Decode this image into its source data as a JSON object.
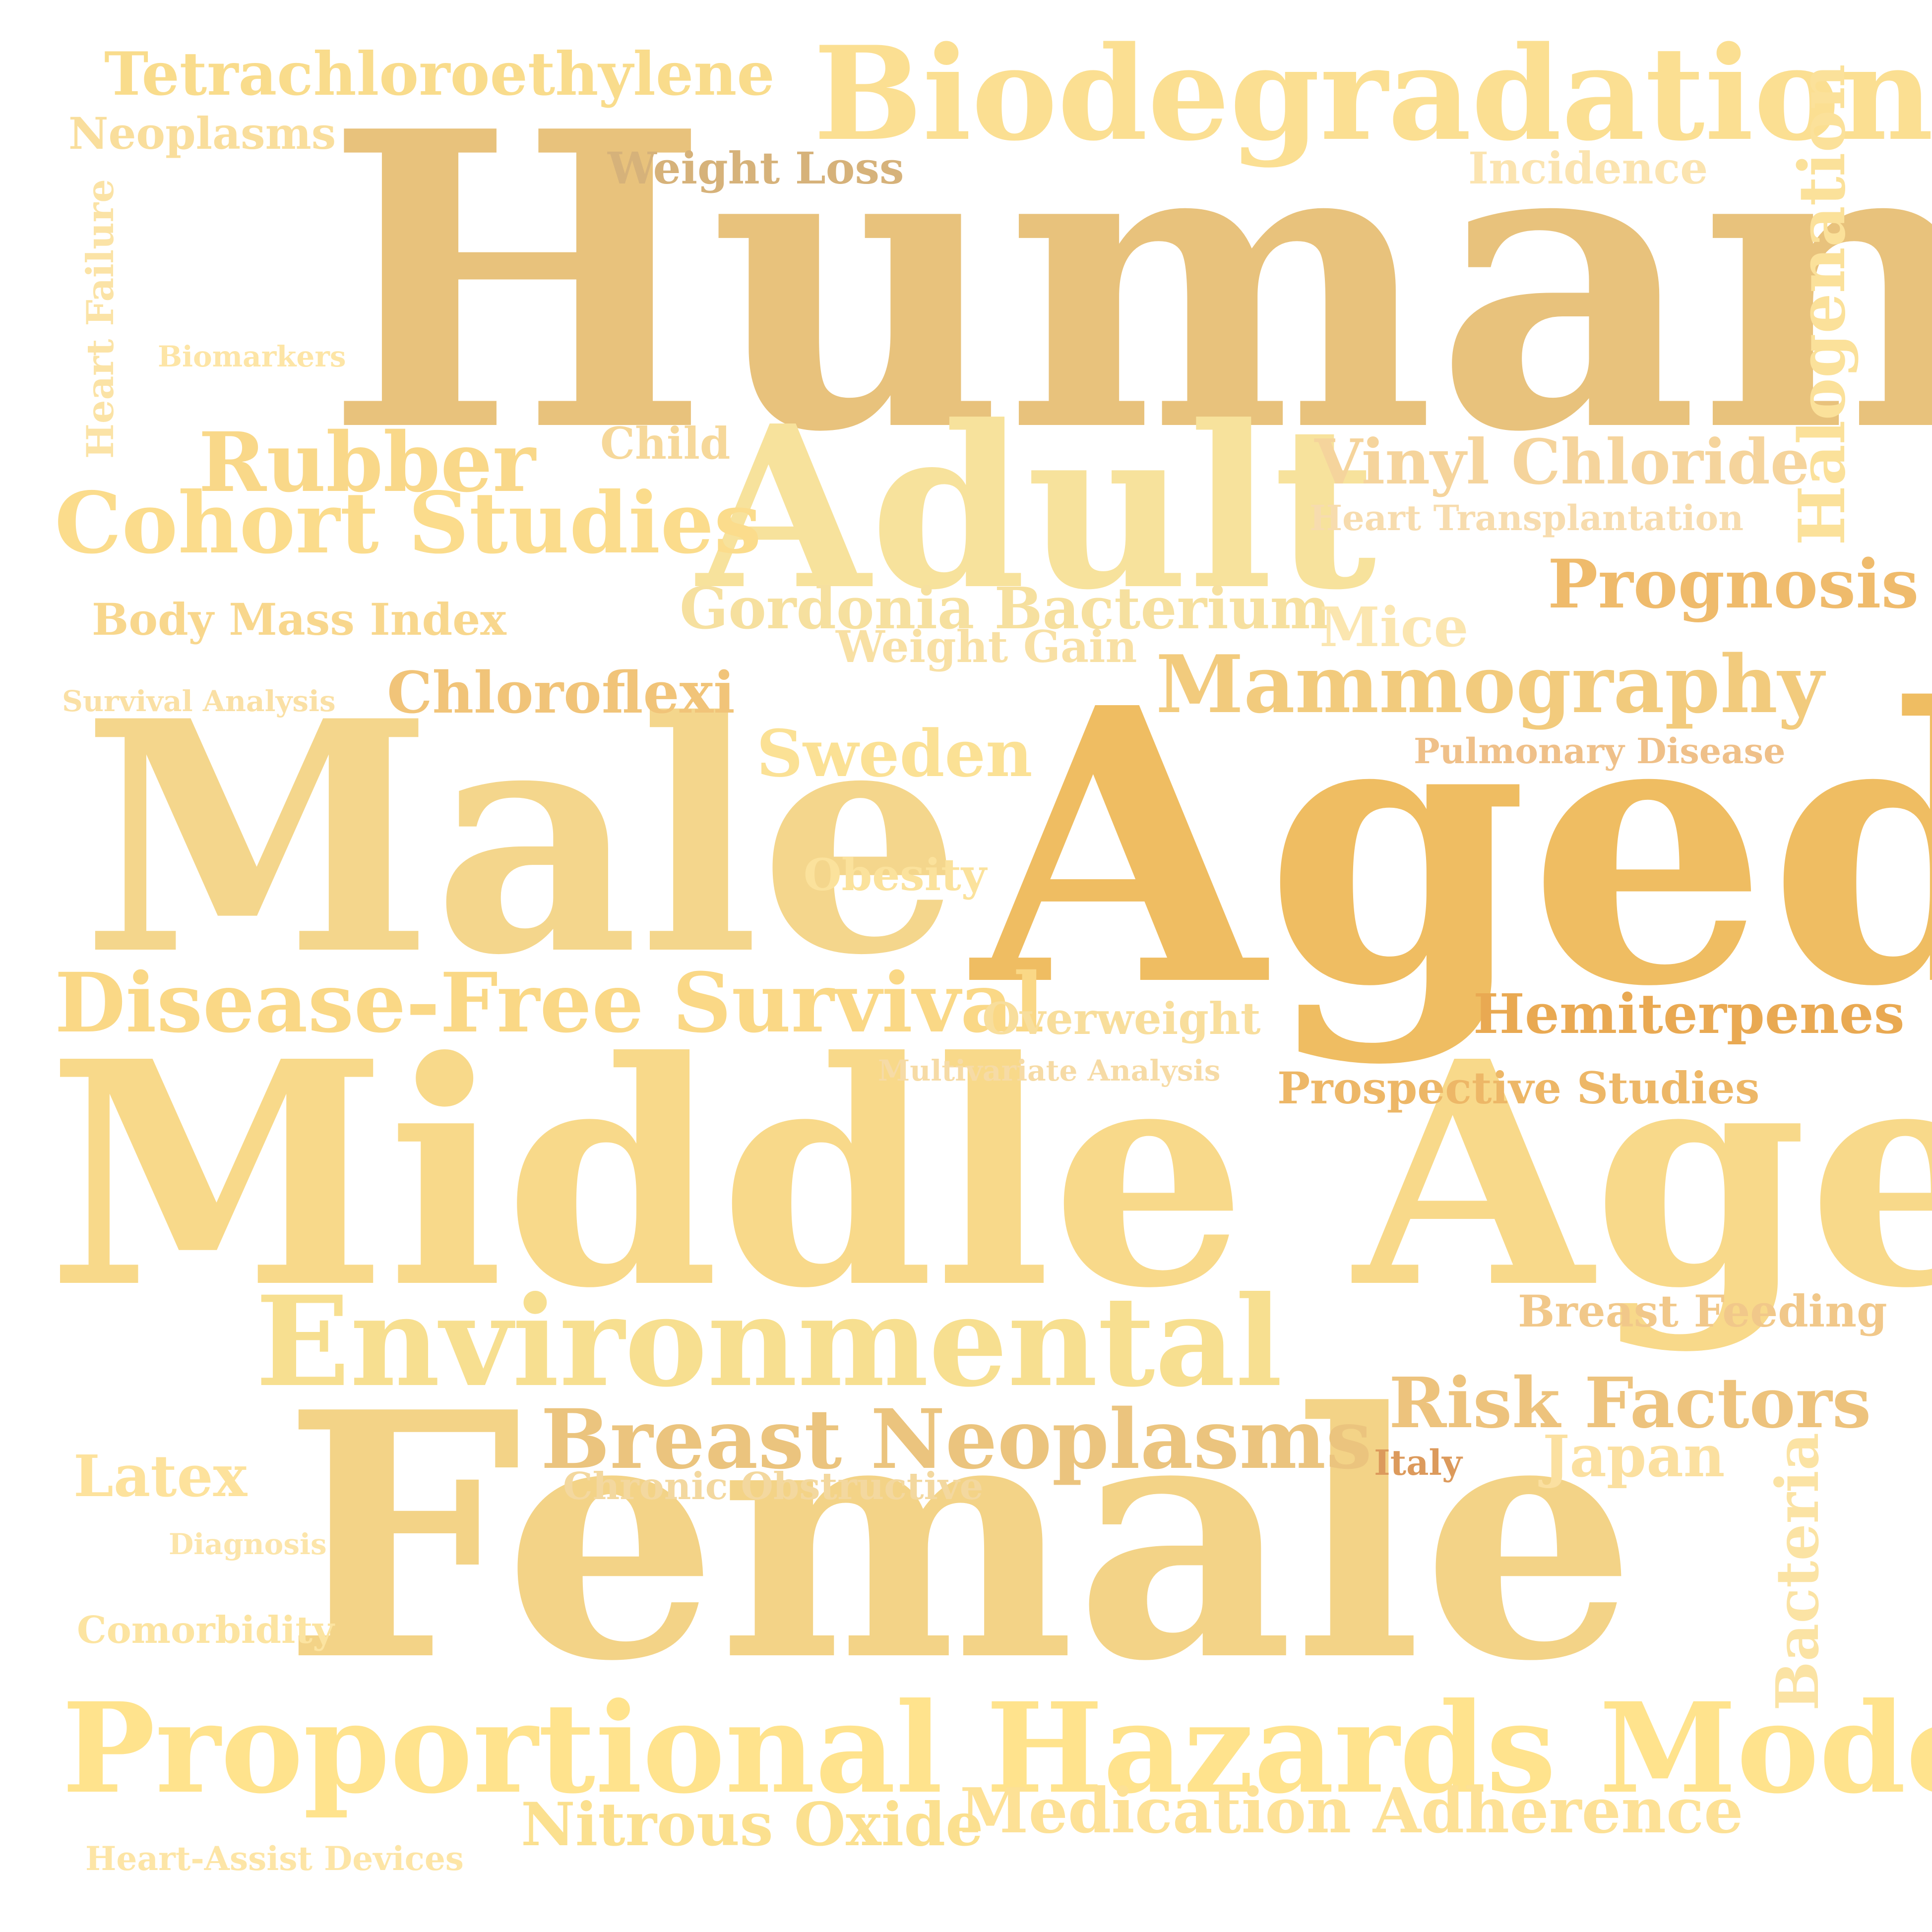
{
  "words": [
    {
      "id": "humans",
      "text": "Humans",
      "color": "#e8c27c"
    },
    {
      "id": "middle-aged",
      "text": "Middle Aged",
      "color": "#f8d98a"
    },
    {
      "id": "female",
      "text": "Female",
      "color": "#f3d387"
    },
    {
      "id": "aged",
      "text": "Aged",
      "color": "#efbd62"
    },
    {
      "id": "male",
      "text": "Male",
      "color": "#f4d68c"
    },
    {
      "id": "adult",
      "text": "Adult",
      "color": "#f7e29c"
    },
    {
      "id": "biodegradation",
      "text": "Biodegradation",
      "color": "#fbdf92"
    },
    {
      "id": "proportional-hazards-models",
      "text": "Proportional Hazards Models",
      "color": "#ffe38d"
    },
    {
      "id": "environmental",
      "text": "Environmental",
      "color": "#f7df90"
    },
    {
      "id": "cohort-studies",
      "text": "Cohort Studies",
      "color": "#fbdc8c"
    },
    {
      "id": "disease-free-survival",
      "text": "Disease-Free Survival",
      "color": "#fad886"
    },
    {
      "id": "breast-neoplasms",
      "text": "Breast Neoplasms",
      "color": "#ebc47e"
    },
    {
      "id": "mammography",
      "text": "Mammography",
      "color": "#f2cb7d"
    },
    {
      "id": "tetrachloroethylene",
      "text": "Tetrachloroethylene",
      "color": "#f9dc8c"
    },
    {
      "id": "rubber",
      "text": "Rubber",
      "color": "#f9d889"
    },
    {
      "id": "vinyl-chloride",
      "text": "Vinyl Chloride",
      "color": "#f5d49c"
    },
    {
      "id": "prognosis",
      "text": "Prognosis",
      "color": "#efbb6c"
    },
    {
      "id": "risk-factors",
      "text": "Risk Factors",
      "color": "#edc37d"
    },
    {
      "id": "medication-adherence",
      "text": "Medication Adherence",
      "color": "#fde196"
    },
    {
      "id": "nitrous-oxide",
      "text": "Nitrous Oxide",
      "color": "#fbe08f"
    },
    {
      "id": "gordonia-bacterium",
      "text": "Gordonia Bacterium",
      "color": "#f6e09f"
    },
    {
      "id": "sweden",
      "text": "Sweden",
      "color": "#fbe195"
    },
    {
      "id": "chloroflexi",
      "text": "Chloroflexi",
      "color": "#f1c479"
    },
    {
      "id": "hemiterpenes",
      "text": "Hemiterpenes",
      "color": "#e9a952"
    },
    {
      "id": "japan",
      "text": "Japan",
      "color": "#fbe0a0"
    },
    {
      "id": "latex",
      "text": "Latex",
      "color": "#fde29c"
    },
    {
      "id": "mice",
      "text": "Mice",
      "color": "#fbe6b0"
    },
    {
      "id": "prospective-studies",
      "text": "Prospective Studies",
      "color": "#edb767"
    },
    {
      "id": "breast-feeding",
      "text": "Breast Feeding",
      "color": "#f1c88a"
    },
    {
      "id": "overweight",
      "text": "Overweight",
      "color": "#f8de9c"
    },
    {
      "id": "weight-loss",
      "text": "Weight Loss",
      "color": "#d6b27a"
    },
    {
      "id": "neoplasms",
      "text": "Neoplasms",
      "color": "#f9de9c"
    },
    {
      "id": "incidence",
      "text": "Incidence",
      "color": "#fbe4b0"
    },
    {
      "id": "weight-gain",
      "text": "Weight Gain",
      "color": "#f8e0a4"
    },
    {
      "id": "body-mass-index",
      "text": "Body Mass Index",
      "color": "#f8d78d"
    },
    {
      "id": "child",
      "text": "Child",
      "color": "#f6d89a"
    },
    {
      "id": "obesity",
      "text": "Obesity",
      "color": "#fbe29c"
    },
    {
      "id": "heart-transplantation",
      "text": "Heart Transplantation",
      "color": "#f7dcae"
    },
    {
      "id": "pulmonary-disease",
      "text": "Pulmonary Disease",
      "color": "#efc089"
    },
    {
      "id": "chronic-obstructive",
      "text": "Chronic Obstructive",
      "color": "#f3d89f"
    },
    {
      "id": "comorbidity",
      "text": "Comorbidity",
      "color": "#fce4a1"
    },
    {
      "id": "heart-assist-devices",
      "text": "Heart-Assist Devices",
      "color": "#fde5a6"
    },
    {
      "id": "biomarkers",
      "text": "Biomarkers",
      "color": "#fde5a6"
    },
    {
      "id": "survival-analysis",
      "text": "Survival Analysis",
      "color": "#fae0a5"
    },
    {
      "id": "diagnosis",
      "text": "Diagnosis",
      "color": "#fce5aa"
    },
    {
      "id": "multivariate-analysis",
      "text": "Multivariate Analysis",
      "color": "#f6dba6"
    },
    {
      "id": "italy",
      "text": "Italy",
      "color": "#dc9a5c"
    },
    {
      "id": "halogenation",
      "text": "Halogenation",
      "color": "#fbe19a"
    },
    {
      "id": "heart-failure",
      "text": "Heart Failure",
      "color": "#fbe3a6"
    },
    {
      "id": "bacteria",
      "text": "Bacteria",
      "color": "#fbe3a4"
    }
  ]
}
